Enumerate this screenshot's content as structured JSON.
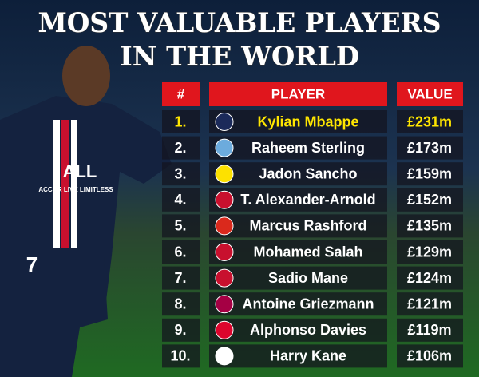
{
  "title": [
    "MOST VALUABLE PLAYERS",
    "IN THE WORLD"
  ],
  "photo": {
    "sponsor": "ALL",
    "sponsor_line": "ACCOR LIVE LIMITLESS",
    "number": "7"
  },
  "table": {
    "header": [
      "#",
      "PLAYER",
      "VALUE"
    ],
    "rows": [
      [
        "1.",
        "Kylian Mbappe",
        "£231m"
      ],
      [
        "2.",
        "Raheem Sterling",
        "£173m"
      ],
      [
        "3.",
        "Jadon Sancho",
        "£159m"
      ],
      [
        "4.",
        "T. Alexander-Arnold",
        "£152m"
      ],
      [
        "5.",
        "Marcus Rashford",
        "£135m"
      ],
      [
        "6.",
        "Mohamed Salah",
        "£129m"
      ],
      [
        "7.",
        "Sadio Mane",
        "£124m"
      ],
      [
        "8.",
        "Antoine Griezmann",
        "£121m"
      ],
      [
        "9.",
        "Alphonso Davies",
        "£119m"
      ],
      [
        "10.",
        "Harry Kane",
        "£106m"
      ]
    ]
  }
}
